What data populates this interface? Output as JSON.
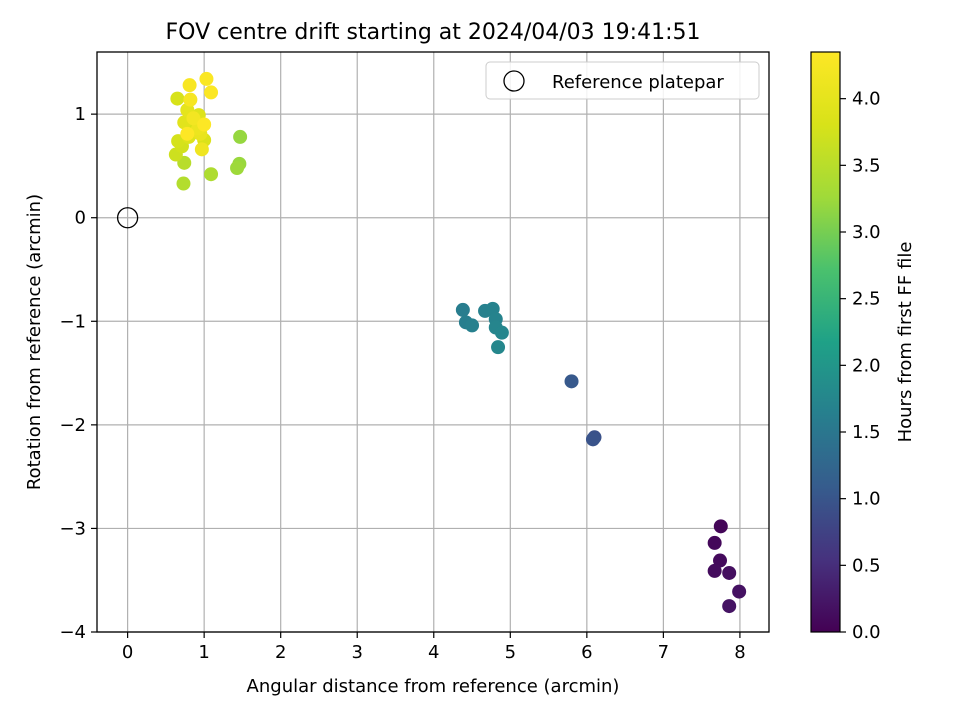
{
  "chart_data": {
    "type": "scatter",
    "title": "FOV centre drift starting at 2024/04/03 19:41:51",
    "xlabel": "Angular distance from reference (arcmin)",
    "ylabel": "Rotation from reference (arcmin)",
    "xlim": [
      -0.4,
      8.38
    ],
    "ylim": [
      -4.0,
      1.6
    ],
    "x_ticks": [
      0,
      1,
      2,
      3,
      4,
      5,
      6,
      7,
      8
    ],
    "y_ticks": [
      -4,
      -3,
      -2,
      -1,
      0,
      1
    ],
    "grid": true,
    "legend_position": "top-right",
    "legend": [
      "Reference platepar"
    ],
    "reference_point": {
      "label": "Reference platepar",
      "x": 0,
      "y": 0
    },
    "colorbar": {
      "label": "Hours from first FF file",
      "range": [
        0.0,
        4.35
      ],
      "ticks": [
        "0.0",
        "0.5",
        "1.0",
        "1.5",
        "2.0",
        "2.5",
        "3.0",
        "3.5",
        "4.0"
      ],
      "colormap": "viridis"
    },
    "points": [
      {
        "x": 7.75,
        "y": -2.98,
        "t": 0.05
      },
      {
        "x": 7.67,
        "y": -3.14,
        "t": 0.08
      },
      {
        "x": 7.74,
        "y": -3.31,
        "t": 0.1
      },
      {
        "x": 7.67,
        "y": -3.41,
        "t": 0.12
      },
      {
        "x": 7.86,
        "y": -3.43,
        "t": 0.15
      },
      {
        "x": 7.99,
        "y": -3.61,
        "t": 0.18
      },
      {
        "x": 7.86,
        "y": -3.75,
        "t": 0.2
      },
      {
        "x": 6.1,
        "y": -2.12,
        "t": 0.95
      },
      {
        "x": 6.08,
        "y": -2.14,
        "t": 0.97
      },
      {
        "x": 5.8,
        "y": -1.58,
        "t": 1.05
      },
      {
        "x": 4.38,
        "y": -0.89,
        "t": 1.6
      },
      {
        "x": 4.42,
        "y": -1.01,
        "t": 1.62
      },
      {
        "x": 4.5,
        "y": -1.04,
        "t": 1.64
      },
      {
        "x": 4.67,
        "y": -0.9,
        "t": 1.66
      },
      {
        "x": 4.77,
        "y": -0.88,
        "t": 1.68
      },
      {
        "x": 4.81,
        "y": -0.98,
        "t": 1.7
      },
      {
        "x": 4.81,
        "y": -1.06,
        "t": 1.72
      },
      {
        "x": 4.89,
        "y": -1.11,
        "t": 1.74
      },
      {
        "x": 4.84,
        "y": -1.25,
        "t": 1.76
      },
      {
        "x": 1.47,
        "y": 0.78,
        "t": 3.2
      },
      {
        "x": 1.46,
        "y": 0.52,
        "t": 3.22
      },
      {
        "x": 1.43,
        "y": 0.48,
        "t": 3.25
      },
      {
        "x": 1.09,
        "y": 0.42,
        "t": 3.4
      },
      {
        "x": 0.73,
        "y": 0.33,
        "t": 3.45
      },
      {
        "x": 0.74,
        "y": 0.53,
        "t": 3.5
      },
      {
        "x": 0.63,
        "y": 0.61,
        "t": 3.7
      },
      {
        "x": 0.71,
        "y": 0.69,
        "t": 3.75
      },
      {
        "x": 0.66,
        "y": 0.74,
        "t": 3.78
      },
      {
        "x": 0.65,
        "y": 1.15,
        "t": 3.8
      },
      {
        "x": 0.84,
        "y": 0.87,
        "t": 3.82
      },
      {
        "x": 1.0,
        "y": 0.75,
        "t": 3.85
      },
      {
        "x": 0.8,
        "y": 0.78,
        "t": 3.88
      },
      {
        "x": 0.93,
        "y": 0.99,
        "t": 3.9
      },
      {
        "x": 0.74,
        "y": 0.92,
        "t": 3.95
      },
      {
        "x": 0.78,
        "y": 1.04,
        "t": 4.0
      },
      {
        "x": 0.95,
        "y": 0.81,
        "t": 4.05
      },
      {
        "x": 0.92,
        "y": 0.86,
        "t": 4.1
      },
      {
        "x": 0.97,
        "y": 0.66,
        "t": 4.15
      },
      {
        "x": 0.86,
        "y": 0.96,
        "t": 4.2
      },
      {
        "x": 0.82,
        "y": 1.14,
        "t": 4.25
      },
      {
        "x": 0.81,
        "y": 1.28,
        "t": 4.28
      },
      {
        "x": 1.03,
        "y": 1.34,
        "t": 4.3
      },
      {
        "x": 1.09,
        "y": 1.21,
        "t": 4.32
      },
      {
        "x": 1.0,
        "y": 0.9,
        "t": 4.34
      },
      {
        "x": 0.78,
        "y": 0.81,
        "t": 4.35
      }
    ]
  }
}
